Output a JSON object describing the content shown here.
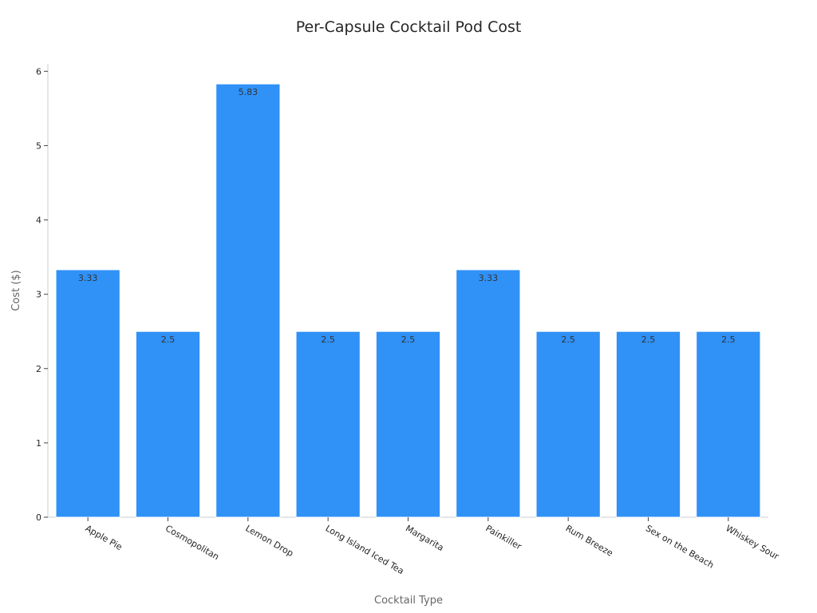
{
  "chart_data": {
    "type": "bar",
    "title": "Per-Capsule Cocktail Pod Cost",
    "xlabel": "Cocktail Type",
    "ylabel": "Cost ($)",
    "categories": [
      "Apple Pie",
      "Cosmopolitan",
      "Lemon Drop",
      "Long Island Iced Tea",
      "Margarita",
      "Painkiller",
      "Rum Breeze",
      "Sex on the Beach",
      "Whiskey Sour"
    ],
    "values": [
      3.33,
      2.5,
      5.83,
      2.5,
      2.5,
      3.33,
      2.5,
      2.5,
      2.5
    ],
    "data_labels": [
      "3.33",
      "2.5",
      "5.83",
      "2.5",
      "2.5",
      "3.33",
      "2.5",
      "2.5",
      "2.5"
    ],
    "ylim": [
      0,
      6.1
    ],
    "yticks": [
      0,
      1,
      2,
      3,
      4,
      5,
      6
    ],
    "grid": false,
    "legend": "none",
    "bar_color": "#3091f7"
  }
}
